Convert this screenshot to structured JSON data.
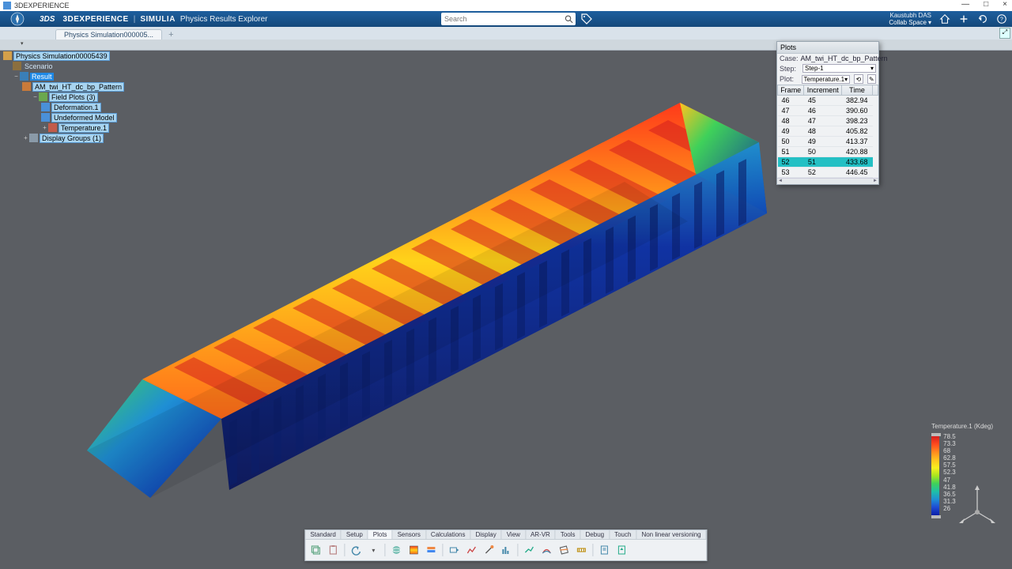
{
  "window": {
    "title": "3DEXPERIENCE"
  },
  "topbar": {
    "brand": "3DEXPERIENCE",
    "suite": "SIMULIA",
    "app": "Physics Results Explorer",
    "search_placeholder": "Search",
    "user": "Kaustubh DAS",
    "collab": "Collab Space"
  },
  "tab": {
    "label": "Physics Simulation000005..."
  },
  "tree": {
    "root": "Physics Simulation00005439",
    "scenario": "Scenario",
    "result": "Result",
    "pattern": "AM_twi_HT_dc_bp_Pattern",
    "fieldplots": "Field Plots (3)",
    "deformation": "Deformation.1",
    "undeformed": "Undeformed Model",
    "temperature": "Temperature.1",
    "displaygroups": "Display Groups (1)"
  },
  "plots": {
    "title": "Plots",
    "case_lbl": "Case:",
    "case_val": "AM_twi_HT_dc_bp_Pattern",
    "step_lbl": "Step:",
    "step_val": "Step-1",
    "plot_lbl": "Plot:",
    "plot_val": "Temperature.1",
    "cols": [
      "Frame",
      "Increment",
      "Time"
    ],
    "rows": [
      [
        "46",
        "45",
        "382.94"
      ],
      [
        "47",
        "46",
        "390.60"
      ],
      [
        "48",
        "47",
        "398.23"
      ],
      [
        "49",
        "48",
        "405.82"
      ],
      [
        "50",
        "49",
        "413.37"
      ],
      [
        "51",
        "50",
        "420.88"
      ],
      [
        "52",
        "51",
        "433.68"
      ],
      [
        "53",
        "52",
        "446.45"
      ]
    ],
    "highlight_index": 6
  },
  "legend": {
    "title": "Temperature.1 (Kdeg)",
    "ticks": [
      "78.5",
      "73.3",
      "68",
      "62.8",
      "57.5",
      "52.3",
      "47",
      "41.8",
      "36.5",
      "31.3",
      "26"
    ],
    "colors": [
      "#d41f1f",
      "#ff4a1f",
      "#ff8a1f",
      "#ffc31f",
      "#f7f01f",
      "#a8e61f",
      "#3fd15a",
      "#1fbfa8",
      "#1f8fd4",
      "#1f4ad4",
      "#0a1fa8"
    ]
  },
  "bottombar": {
    "tabs": [
      "Standard",
      "Setup",
      "Plots",
      "Sensors",
      "Calculations",
      "Display",
      "View",
      "AR-VR",
      "Tools",
      "Debug",
      "Touch",
      "Non linear versioning"
    ],
    "active_index": 2
  },
  "viewport_bg": "#5b5e63"
}
